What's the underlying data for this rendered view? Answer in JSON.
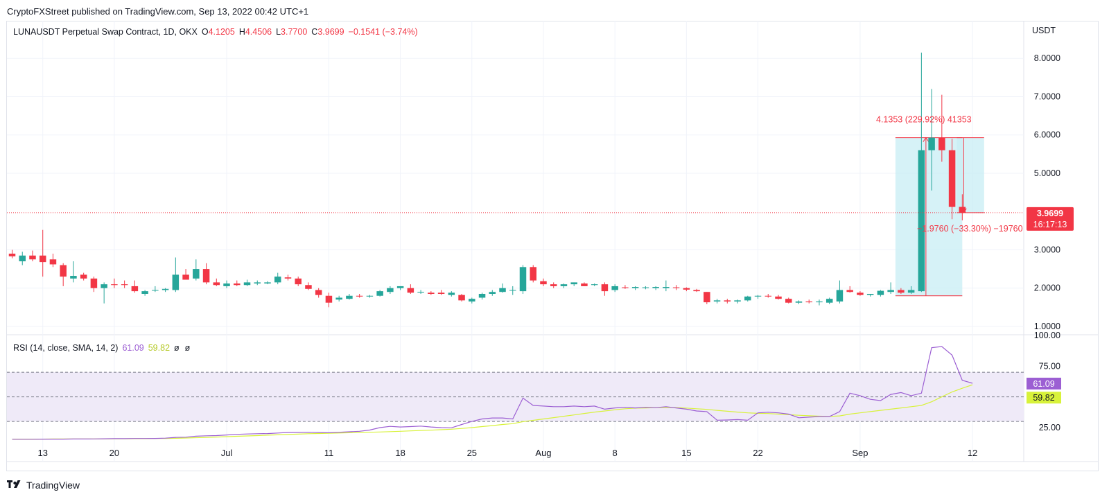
{
  "header": {
    "publisher": "CryptoFXStreet published on TradingView.com, Sep 13, 2022 00:42 UTC+1"
  },
  "footer": {
    "brand": "TradingView"
  },
  "colors": {
    "up": "#26a69a",
    "down": "#f23645",
    "rsi": "#9c5fd3",
    "rsi_ma": "#d8f23a",
    "range_fill": "#c8eef4",
    "rsi_band": "#efeaf8",
    "text": "#131722",
    "axis_text": "#131722"
  },
  "chart_data": [
    {
      "type": "candlestick",
      "title": "LUNAUSDT Perpetual Swap Contract, 1D, OKX",
      "ohlc_legend": {
        "o_label": "O",
        "o": "4.1205",
        "h_label": "H",
        "h": "4.4506",
        "l_label": "L",
        "l": "3.7700",
        "c_label": "C",
        "c": "3.9699",
        "change": "−0.1541 (−3.74%)"
      },
      "currency": "USDT",
      "y_ticks": [
        "8.0000",
        "7.0000",
        "6.0000",
        "5.0000",
        "3.0000",
        "2.0000",
        "1.0000"
      ],
      "y_tick_values": [
        8,
        7,
        6,
        5,
        3,
        2,
        1
      ],
      "ylim": [
        0.8,
        8.8
      ],
      "last_price": {
        "value": "3.9699",
        "countdown": "16:17:13"
      },
      "x_labels": [
        {
          "label": "13",
          "index": 3
        },
        {
          "label": "20",
          "index": 10
        },
        {
          "label": "Jul",
          "index": 21
        },
        {
          "label": "11",
          "index": 31
        },
        {
          "label": "18",
          "index": 38
        },
        {
          "label": "25",
          "index": 45
        },
        {
          "label": "Aug",
          "index": 52
        },
        {
          "label": "8",
          "index": 59
        },
        {
          "label": "15",
          "index": 66
        },
        {
          "label": "22",
          "index": 73
        },
        {
          "label": "Sep",
          "index": 83
        },
        {
          "label": "12",
          "index": 94
        }
      ],
      "candles": [
        [
          2.9,
          3.0,
          2.78,
          2.83
        ],
        [
          2.7,
          2.95,
          2.6,
          2.85
        ],
        [
          2.85,
          2.98,
          2.7,
          2.75
        ],
        [
          2.85,
          3.52,
          2.3,
          2.68
        ],
        [
          2.75,
          2.9,
          2.55,
          2.62
        ],
        [
          2.6,
          2.65,
          2.05,
          2.3
        ],
        [
          2.25,
          2.7,
          2.15,
          2.32
        ],
        [
          2.35,
          2.4,
          2.2,
          2.25
        ],
        [
          2.25,
          2.3,
          1.9,
          2.0
        ],
        [
          2.0,
          2.15,
          1.6,
          2.1
        ],
        [
          2.1,
          2.25,
          2.0,
          2.08
        ],
        [
          2.1,
          2.2,
          2.0,
          2.08
        ],
        [
          2.05,
          2.2,
          1.88,
          1.92
        ],
        [
          1.85,
          1.95,
          1.8,
          1.92
        ],
        [
          1.95,
          2.05,
          1.9,
          1.95
        ],
        [
          1.95,
          2.0,
          1.9,
          1.98
        ],
        [
          1.95,
          2.8,
          1.9,
          2.35
        ],
        [
          2.35,
          2.5,
          2.25,
          2.22
        ],
        [
          2.25,
          2.75,
          2.2,
          2.5
        ],
        [
          2.5,
          2.65,
          2.1,
          2.15
        ],
        [
          2.15,
          2.25,
          2.05,
          2.08
        ],
        [
          2.05,
          2.2,
          2.0,
          2.12
        ],
        [
          2.12,
          2.2,
          2.05,
          2.08
        ],
        [
          2.08,
          2.22,
          2.05,
          2.15
        ],
        [
          2.12,
          2.2,
          2.08,
          2.15
        ],
        [
          2.12,
          2.18,
          2.1,
          2.15
        ],
        [
          2.15,
          2.4,
          2.1,
          2.3
        ],
        [
          2.28,
          2.35,
          2.2,
          2.25
        ],
        [
          2.25,
          2.3,
          2.05,
          2.1
        ],
        [
          2.08,
          2.15,
          1.95,
          1.98
        ],
        [
          1.95,
          2.0,
          1.75,
          1.82
        ],
        [
          1.8,
          1.88,
          1.5,
          1.62
        ],
        [
          1.7,
          1.8,
          1.65,
          1.75
        ],
        [
          1.72,
          1.85,
          1.7,
          1.8
        ],
        [
          1.8,
          1.85,
          1.75,
          1.78
        ],
        [
          1.78,
          1.82,
          1.75,
          1.8
        ],
        [
          1.8,
          1.95,
          1.78,
          1.92
        ],
        [
          1.9,
          2.05,
          1.85,
          2.0
        ],
        [
          2.0,
          2.05,
          1.95,
          2.05
        ],
        [
          2.0,
          2.1,
          1.85,
          1.88
        ],
        [
          1.88,
          1.95,
          1.85,
          1.9
        ],
        [
          1.88,
          1.92,
          1.82,
          1.85
        ],
        [
          1.88,
          1.95,
          1.82,
          1.85
        ],
        [
          1.82,
          1.92,
          1.78,
          1.88
        ],
        [
          1.82,
          1.85,
          1.65,
          1.68
        ],
        [
          1.65,
          1.75,
          1.6,
          1.72
        ],
        [
          1.75,
          1.88,
          1.7,
          1.85
        ],
        [
          1.85,
          1.95,
          1.8,
          1.9
        ],
        [
          1.9,
          2.12,
          1.88,
          2.0
        ],
        [
          1.95,
          2.05,
          1.82,
          1.95
        ],
        [
          1.92,
          2.6,
          1.85,
          2.55
        ],
        [
          2.55,
          2.6,
          2.15,
          2.2
        ],
        [
          2.18,
          2.25,
          2.05,
          2.1
        ],
        [
          2.1,
          2.15,
          2.0,
          2.05
        ],
        [
          2.05,
          2.12,
          2.0,
          2.1
        ],
        [
          2.1,
          2.15,
          2.05,
          2.15
        ],
        [
          2.12,
          2.15,
          2.05,
          2.05
        ],
        [
          2.08,
          2.12,
          2.05,
          2.1
        ],
        [
          2.1,
          2.15,
          1.8,
          1.92
        ],
        [
          1.95,
          2.1,
          1.9,
          2.05
        ],
        [
          2.02,
          2.08,
          1.98,
          2.0
        ],
        [
          2.0,
          2.05,
          1.95,
          2.03
        ],
        [
          2.0,
          2.05,
          1.97,
          2.02
        ],
        [
          2.0,
          2.05,
          1.95,
          2.03
        ],
        [
          2.0,
          2.2,
          1.92,
          2.03
        ],
        [
          2.02,
          2.08,
          1.95,
          2.0
        ],
        [
          2.0,
          2.02,
          1.92,
          1.96
        ],
        [
          1.95,
          1.98,
          1.9,
          1.92
        ],
        [
          1.9,
          1.9,
          1.58,
          1.63
        ],
        [
          1.65,
          1.72,
          1.6,
          1.68
        ],
        [
          1.68,
          1.72,
          1.6,
          1.65
        ],
        [
          1.65,
          1.7,
          1.6,
          1.68
        ],
        [
          1.68,
          1.8,
          1.65,
          1.78
        ],
        [
          1.78,
          1.82,
          1.72,
          1.8
        ],
        [
          1.8,
          1.85,
          1.75,
          1.78
        ],
        [
          1.78,
          1.82,
          1.7,
          1.72
        ],
        [
          1.72,
          1.75,
          1.6,
          1.62
        ],
        [
          1.62,
          1.68,
          1.58,
          1.65
        ],
        [
          1.65,
          1.7,
          1.6,
          1.63
        ],
        [
          1.63,
          1.7,
          1.55,
          1.65
        ],
        [
          1.62,
          1.75,
          1.58,
          1.72
        ],
        [
          1.65,
          2.2,
          1.6,
          1.95
        ],
        [
          1.95,
          2.05,
          1.88,
          1.9
        ],
        [
          1.88,
          1.92,
          1.8,
          1.82
        ],
        [
          1.82,
          1.85,
          1.78,
          1.85
        ],
        [
          1.82,
          1.95,
          1.78,
          1.93
        ],
        [
          1.9,
          2.15,
          1.85,
          1.95
        ],
        [
          1.95,
          2.0,
          1.85,
          1.88
        ],
        [
          1.88,
          2.05,
          1.85,
          1.95
        ],
        [
          1.92,
          8.15,
          1.9,
          5.6
        ],
        [
          5.6,
          7.2,
          4.55,
          5.93
        ],
        [
          5.93,
          7.05,
          5.3,
          5.6
        ],
        [
          5.6,
          5.9,
          3.8,
          4.12
        ],
        [
          4.1205,
          4.4506,
          3.77,
          3.9699
        ]
      ],
      "measure_upper": {
        "label": "4.1353 (229.92%) 41353",
        "from_index": 87,
        "to_index": 93,
        "low": 1.8,
        "high": 5.93
      },
      "measure_lower": {
        "label": "−1.9760 (−33.30%) −19760",
        "from_index": 93,
        "to_index": 95,
        "low": 3.97,
        "high": 5.93
      }
    },
    {
      "type": "line",
      "title": "RSI (14, close, SMA, 14, 2)",
      "legend_values": {
        "rsi": "61.09",
        "rsi_ma": "59.82",
        "extra1": "ø",
        "extra2": "ø"
      },
      "y_ticks": [
        "100.00",
        "75.00",
        "25.00"
      ],
      "y_tick_values": [
        100,
        75,
        25
      ],
      "ylim": [
        12,
        100
      ],
      "bands": {
        "upper": 70,
        "middle": 50,
        "lower": 30
      },
      "last_values": {
        "rsi": "61.09",
        "rsi_ma": "59.82"
      },
      "series": [
        {
          "key": "rsi",
          "values": [
            15.5,
            15.5,
            15.5,
            15.6,
            15.6,
            15.6,
            15.7,
            15.7,
            15.8,
            15.9,
            16.0,
            16.0,
            16.1,
            16.1,
            16.2,
            16.4,
            17.0,
            17.2,
            18.0,
            18.3,
            18.5,
            19.0,
            19.5,
            19.8,
            20.0,
            20.1,
            20.6,
            21.0,
            21.1,
            21.2,
            21.0,
            20.8,
            21.2,
            21.6,
            22.0,
            23.0,
            25.0,
            26.0,
            25.5,
            25.8,
            26.2,
            25.5,
            25.0,
            24.8,
            27.5,
            30.0,
            32.0,
            32.8,
            32.8,
            32.0,
            49.0,
            43.0,
            42.5,
            42.0,
            42.0,
            42.5,
            42.0,
            42.5,
            40.0,
            41.0,
            41.5,
            41.0,
            41.5,
            41.2,
            42.0,
            41.0,
            40.0,
            38.5,
            38.0,
            31.0,
            31.2,
            31.5,
            31.0,
            37.0,
            37.5,
            37.0,
            36.0,
            33.0,
            33.5,
            34.0,
            34.0,
            38.0,
            53.0,
            51.0,
            48.0,
            47.0,
            52.0,
            53.5,
            51.0,
            53.0,
            90.0,
            91.0,
            84.0,
            63.5,
            61.09
          ]
        },
        {
          "key": "rsi_ma",
          "values": [
            15.6,
            15.6,
            15.6,
            15.6,
            15.7,
            15.7,
            15.7,
            15.8,
            15.8,
            15.8,
            15.9,
            15.9,
            16.0,
            16.0,
            16.1,
            16.2,
            16.3,
            16.5,
            16.8,
            17.0,
            17.3,
            17.6,
            17.9,
            18.2,
            18.5,
            18.8,
            19.1,
            19.4,
            19.7,
            20.0,
            20.2,
            20.4,
            20.6,
            20.8,
            21.0,
            21.2,
            21.4,
            21.7,
            22.0,
            22.3,
            22.6,
            22.9,
            23.3,
            23.7,
            24.3,
            25.0,
            25.8,
            26.6,
            27.5,
            28.2,
            29.8,
            30.9,
            32.0,
            33.1,
            34.2,
            35.3,
            36.5,
            37.6,
            38.5,
            39.5,
            40.3,
            40.8,
            41.0,
            41.2,
            41.4,
            41.3,
            40.9,
            40.3,
            39.8,
            39.0,
            38.3,
            37.6,
            37.0,
            36.6,
            36.4,
            36.0,
            35.5,
            35.0,
            34.6,
            34.3,
            34.1,
            34.5,
            36.0,
            37.0,
            38.0,
            39.0,
            40.0,
            41.0,
            42.0,
            43.0,
            46.0,
            50.0,
            54.0,
            57.0,
            59.82
          ]
        }
      ]
    }
  ]
}
